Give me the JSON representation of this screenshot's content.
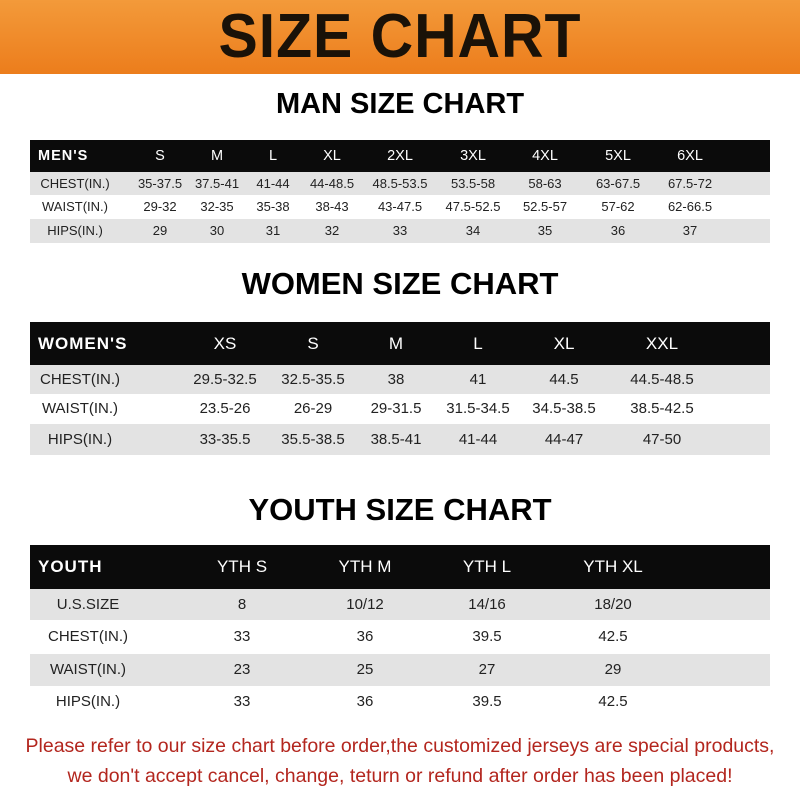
{
  "banner": {
    "title": "SIZE CHART",
    "color": "#ec7d1c"
  },
  "men": {
    "title": "MAN SIZE CHART",
    "header": [
      "MEN'S",
      "S",
      "M",
      "L",
      "XL",
      "2XL",
      "3XL",
      "4XL",
      "5XL",
      "6XL"
    ],
    "rows": [
      [
        "CHEST(IN.)",
        "35-37.5",
        "37.5-41",
        "41-44",
        "44-48.5",
        "48.5-53.5",
        "53.5-58",
        "58-63",
        "63-67.5",
        "67.5-72"
      ],
      [
        "WAIST(IN.)",
        "29-32",
        "32-35",
        "35-38",
        "38-43",
        "43-47.5",
        "47.5-52.5",
        "52.5-57",
        "57-62",
        "62-66.5"
      ],
      [
        "HIPS(IN.)",
        "29",
        "30",
        "31",
        "32",
        "33",
        "34",
        "35",
        "36",
        "37"
      ]
    ]
  },
  "women": {
    "title": "WOMEN SIZE CHART",
    "header": [
      "WOMEN'S",
      "XS",
      "S",
      "M",
      "L",
      "XL",
      "XXL"
    ],
    "rows": [
      [
        "CHEST(IN.)",
        "29.5-32.5",
        "32.5-35.5",
        "38",
        "41",
        "44.5",
        "44.5-48.5"
      ],
      [
        "WAIST(IN.)",
        "23.5-26",
        "26-29",
        "29-31.5",
        "31.5-34.5",
        "34.5-38.5",
        "38.5-42.5"
      ],
      [
        "HIPS(IN.)",
        "33-35.5",
        "35.5-38.5",
        "38.5-41",
        "41-44",
        "44-47",
        "47-50"
      ]
    ]
  },
  "youth": {
    "title": "YOUTH SIZE CHART",
    "header": [
      "YOUTH",
      "YTH S",
      "YTH M",
      "YTH L",
      "YTH XL"
    ],
    "rows": [
      [
        "U.S.SIZE",
        "8",
        "10/12",
        "14/16",
        "18/20"
      ],
      [
        "CHEST(IN.)",
        "33",
        "36",
        "39.5",
        "42.5"
      ],
      [
        "WAIST(IN.)",
        "23",
        "25",
        "27",
        "29"
      ],
      [
        "HIPS(IN.)",
        "33",
        "36",
        "39.5",
        "42.5"
      ]
    ]
  },
  "footer": {
    "line1": "Please refer to our size chart before order,the customized jerseys are special products,",
    "line2": "we don't accept cancel, change, teturn or refund after order has been placed!"
  }
}
